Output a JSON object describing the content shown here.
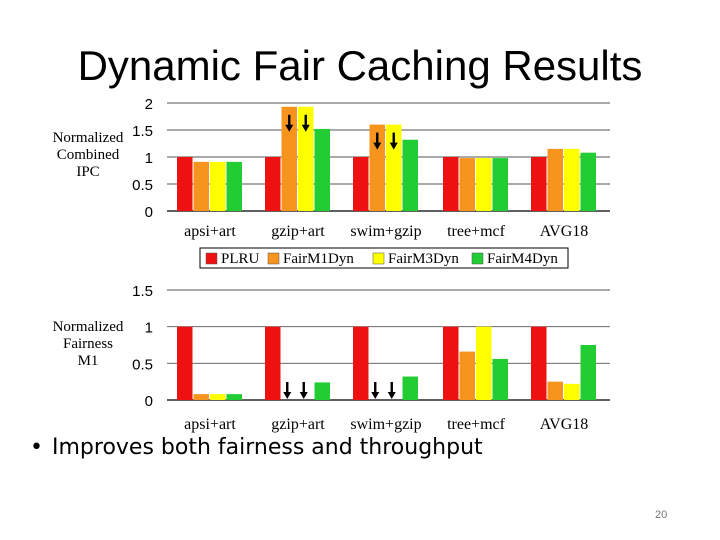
{
  "slide": {
    "title": "Dynamic Fair Caching Results",
    "bullet": "Improves both fairness and throughput",
    "page_number": "20"
  },
  "colors": {
    "PLRU": "#ee1111",
    "FairM1Dyn": "#f7941d",
    "FairM3Dyn": "#ffff00",
    "FairM4Dyn": "#22cc33"
  },
  "chart_data": [
    {
      "type": "bar",
      "ylabel_lines": [
        "Normalized",
        "Combined",
        "IPC"
      ],
      "categories": [
        "apsi+art",
        "gzip+art",
        "swim+gzip",
        "tree+mcf",
        "AVG18"
      ],
      "yticks": [
        "0",
        "0.5",
        "1",
        "1.5",
        "2"
      ],
      "ylim": [
        0,
        2
      ],
      "grid": "horizontal",
      "legend_position": "bottom",
      "series": [
        {
          "name": "PLRU",
          "values": [
            1.0,
            1.0,
            1.0,
            1.0,
            1.0
          ]
        },
        {
          "name": "FairM1Dyn",
          "values": [
            0.91,
            1.93,
            1.6,
            0.98,
            1.15
          ]
        },
        {
          "name": "FairM3Dyn",
          "values": [
            0.91,
            1.93,
            1.6,
            0.98,
            1.15
          ]
        },
        {
          "name": "FairM4Dyn",
          "values": [
            0.91,
            1.52,
            1.32,
            0.98,
            1.08
          ]
        }
      ],
      "arrows": [
        {
          "category": "gzip+art",
          "count": 2
        },
        {
          "category": "swim+gzip",
          "count": 2
        }
      ]
    },
    {
      "type": "bar",
      "ylabel_lines": [
        "Normalized",
        "Fairness",
        "M1"
      ],
      "categories": [
        "apsi+art",
        "gzip+art",
        "swim+gzip",
        "tree+mcf",
        "AVG18"
      ],
      "yticks": [
        "0",
        "0.5",
        "1",
        "1.5"
      ],
      "ylim": [
        0,
        1.5
      ],
      "grid": "horizontal",
      "series": [
        {
          "name": "PLRU",
          "values": [
            1.0,
            1.0,
            1.0,
            1.0,
            1.0
          ]
        },
        {
          "name": "FairM1Dyn",
          "values": [
            0.08,
            0.0,
            0.0,
            0.66,
            0.25
          ]
        },
        {
          "name": "FairM3Dyn",
          "values": [
            0.08,
            0.0,
            0.0,
            1.0,
            0.22
          ]
        },
        {
          "name": "FairM4Dyn",
          "values": [
            0.08,
            0.24,
            0.32,
            0.56,
            0.75
          ]
        }
      ],
      "arrows": [
        {
          "category": "gzip+art",
          "count": 2
        },
        {
          "category": "swim+gzip",
          "count": 2
        }
      ]
    }
  ]
}
